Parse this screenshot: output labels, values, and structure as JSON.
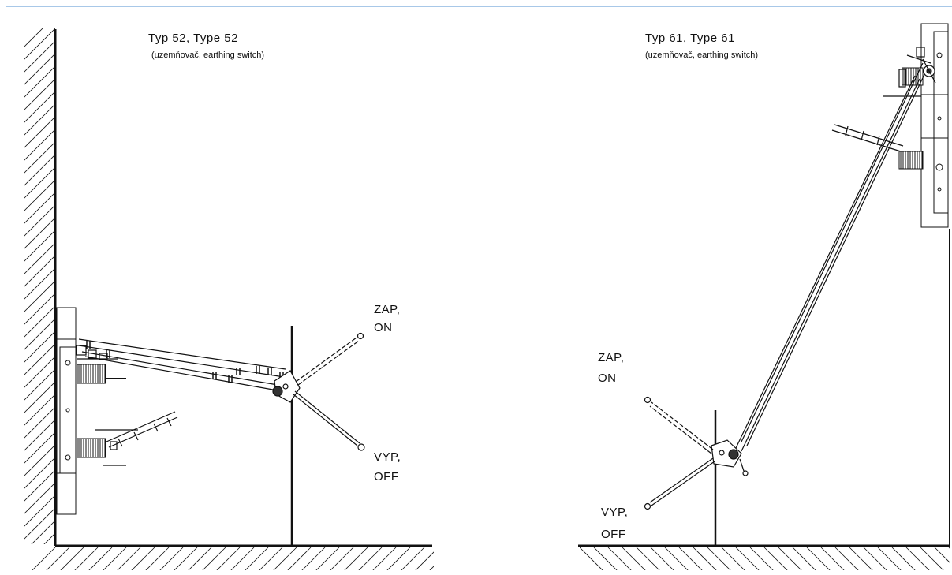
{
  "colors": {
    "line": "#111111",
    "frame": "#a8c8e8",
    "background": "#ffffff"
  },
  "left_drawing": {
    "title": "Typ 52, Type 52",
    "subtitle": "(uzemňovač, earthing switch)",
    "on_label_1": "ZAP,",
    "on_label_2": "ON",
    "off_label_1": "VYP,",
    "off_label_2": "OFF"
  },
  "right_drawing": {
    "title": "Typ 61, Type 61",
    "subtitle": "(uzemňovač, earthing switch)",
    "on_label_1": "ZAP,",
    "on_label_2": "ON",
    "off_label_1": "VYP,",
    "off_label_2": "OFF"
  }
}
